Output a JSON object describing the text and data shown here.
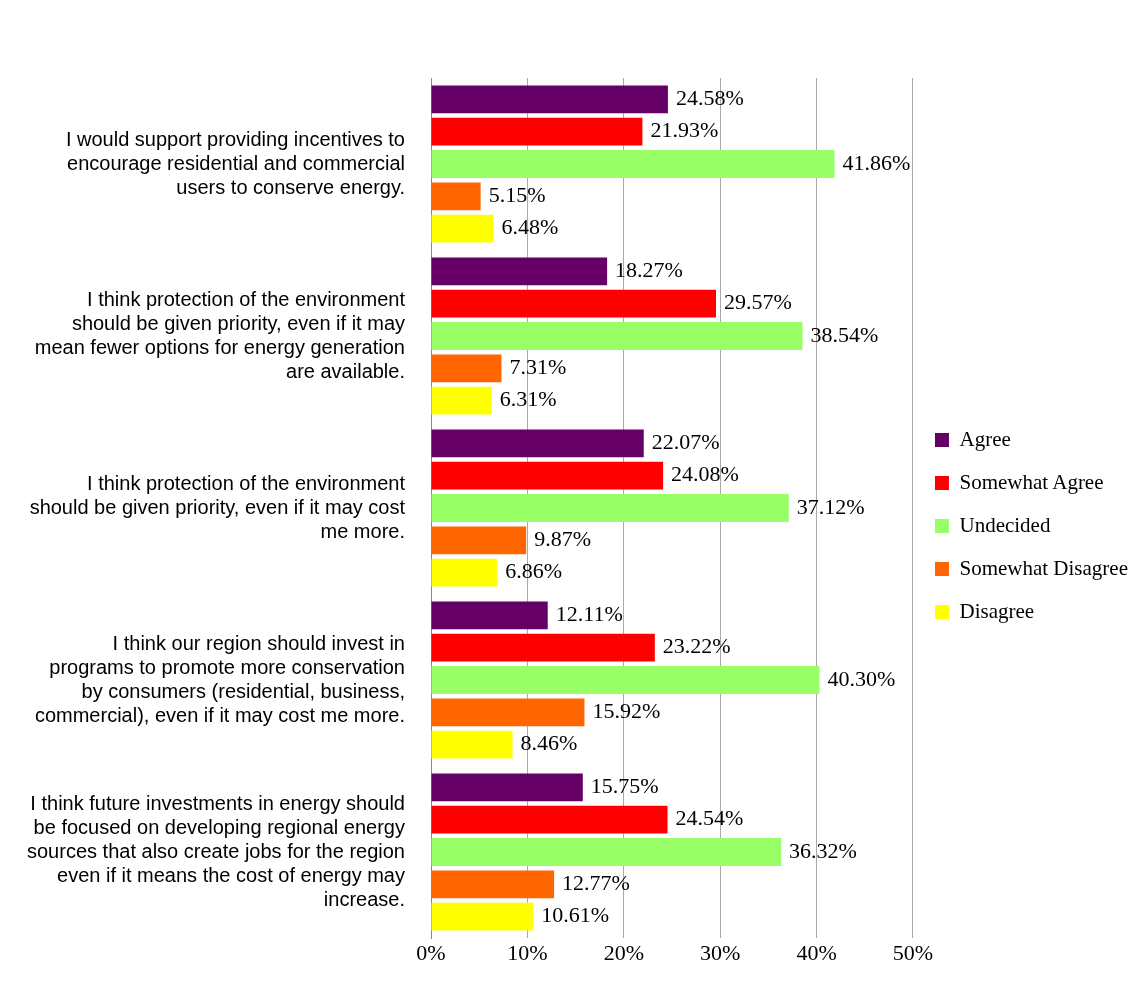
{
  "chart_data": {
    "type": "bar",
    "orientation": "horizontal",
    "categories": [
      "I would support providing incentives to encourage residential and commercial users to conserve energy.",
      "I think protection of the environment should be given priority, even if it may mean fewer options for energy generation are available.",
      "I think protection of the environment should be given priority, even if it may cost me more.",
      "I think our region should invest in programs to promote more conservation by consumers (residential, business, commercial), even if it may cost me more.",
      "I think future investments in energy should be focused on developing regional energy sources that also create jobs for the region even if it means the cost of energy may increase."
    ],
    "series": [
      {
        "name": "Agree",
        "color": "#660066",
        "values": [
          24.58,
          18.27,
          22.07,
          12.11,
          15.75
        ],
        "value_labels": [
          "24.58%",
          "18.27%",
          "22.07%",
          "12.11%",
          "15.75%"
        ]
      },
      {
        "name": "Somewhat Agree",
        "color": "#ff0000",
        "values": [
          21.93,
          29.57,
          24.08,
          23.22,
          24.54
        ],
        "value_labels": [
          "21.93%",
          "29.57%",
          "24.08%",
          "23.22%",
          "24.54%"
        ]
      },
      {
        "name": "Undecided",
        "color": "#99ff66",
        "values": [
          41.86,
          38.54,
          37.12,
          40.3,
          36.32
        ],
        "value_labels": [
          "41.86%",
          "38.54%",
          "37.12%",
          "40.30%",
          "36.32%"
        ]
      },
      {
        "name": "Somewhat Disagree",
        "color": "#ff6600",
        "values": [
          5.15,
          7.31,
          9.87,
          15.92,
          12.77
        ],
        "value_labels": [
          "5.15%",
          "7.31%",
          "9.87%",
          "15.92%",
          "12.77%"
        ]
      },
      {
        "name": "Disagree",
        "color": "#ffff00",
        "values": [
          6.48,
          6.31,
          6.86,
          8.46,
          10.61
        ],
        "value_labels": [
          "6.48%",
          "6.31%",
          "6.86%",
          "8.46%",
          "10.61%"
        ]
      }
    ],
    "xlim": [
      0,
      50
    ],
    "xticks": [
      {
        "value": 0,
        "label": "0%"
      },
      {
        "value": 10,
        "label": "10%"
      },
      {
        "value": 20,
        "label": "20%"
      },
      {
        "value": 30,
        "label": "30%"
      },
      {
        "value": 40,
        "label": "40%"
      },
      {
        "value": 50,
        "label": "50%"
      }
    ],
    "grid": "x",
    "legend": "right"
  }
}
